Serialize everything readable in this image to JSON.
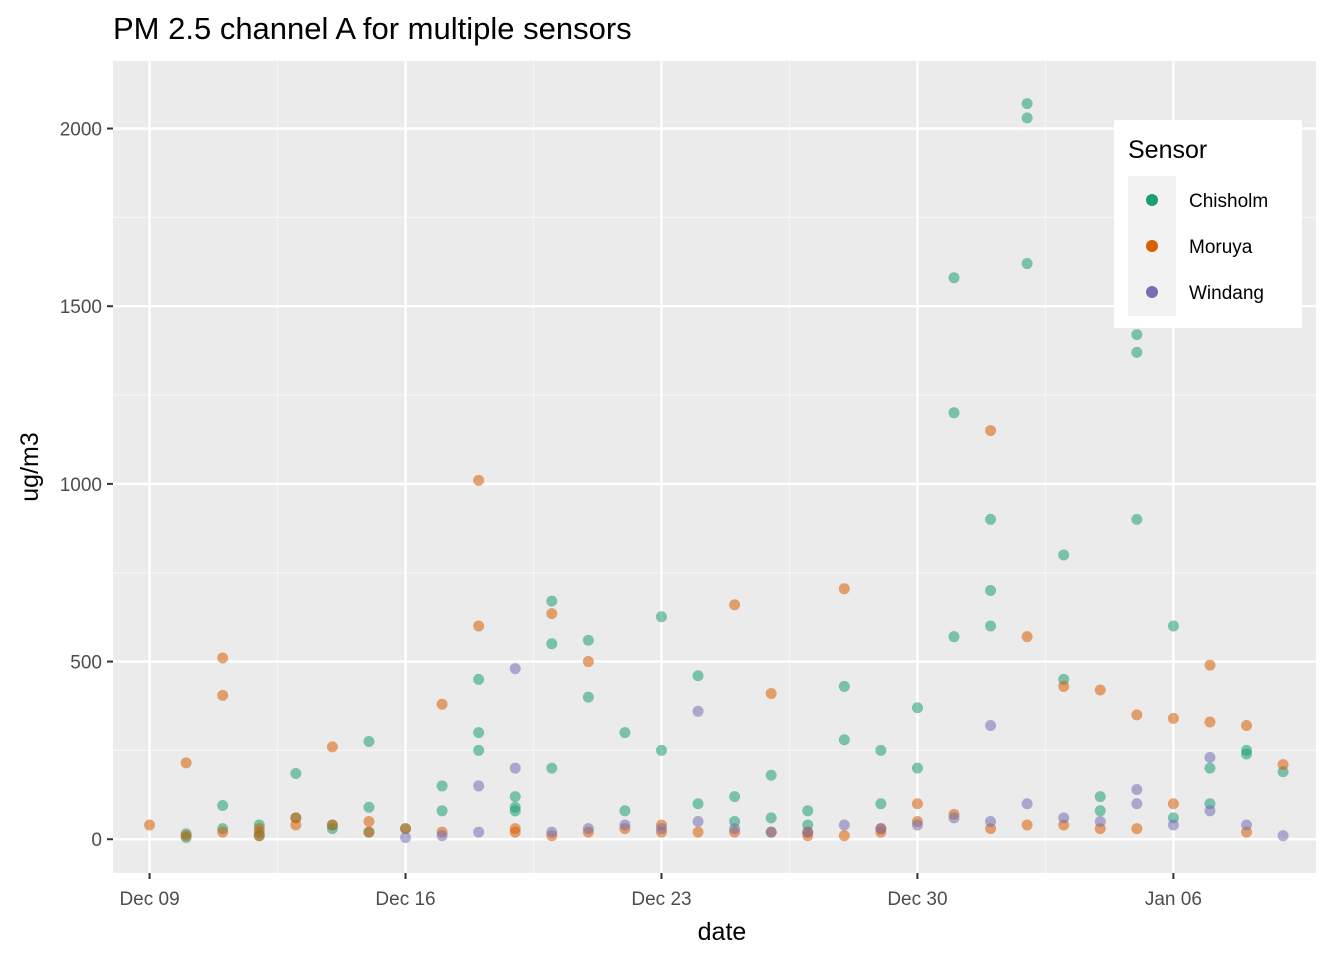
{
  "chart_data": {
    "type": "scatter",
    "title": "PM 2.5 channel A for multiple sensors",
    "xlabel": "date",
    "ylabel": "ug/m3",
    "x_ticks": [
      "Dec 09",
      "Dec 16",
      "Dec 23",
      "Dec 30",
      "Jan 06"
    ],
    "y_ticks": [
      "0",
      "500",
      "1000",
      "1500",
      "2000"
    ],
    "x_range_days": [
      -1.0,
      31.9
    ],
    "ylim": [
      -95,
      2190
    ],
    "grid": true,
    "legend": {
      "title": "Sensor",
      "position": "top-right",
      "entries": [
        "Chisholm",
        "Moruya",
        "Windang"
      ]
    },
    "colors": {
      "Chisholm": "#1b9e77",
      "Moruya": "#d95f02",
      "Windang": "#7570b3"
    },
    "series": [
      {
        "name": "Chisholm",
        "x": [
          "Dec 10",
          "Dec 10",
          "Dec 11",
          "Dec 11",
          "Dec 12",
          "Dec 12",
          "Dec 12",
          "Dec 13",
          "Dec 13",
          "Dec 14",
          "Dec 14",
          "Dec 15",
          "Dec 15",
          "Dec 15",
          "Dec 16",
          "Dec 17",
          "Dec 17",
          "Dec 18",
          "Dec 18",
          "Dec 18",
          "Dec 19",
          "Dec 19",
          "Dec 19",
          "Dec 20",
          "Dec 20",
          "Dec 20",
          "Dec 21",
          "Dec 21",
          "Dec 22",
          "Dec 22",
          "Dec 23",
          "Dec 23",
          "Dec 24",
          "Dec 24",
          "Dec 25",
          "Dec 25",
          "Dec 26",
          "Dec 26",
          "Dec 27",
          "Dec 27",
          "Dec 28",
          "Dec 28",
          "Dec 29",
          "Dec 29",
          "Dec 30",
          "Dec 30",
          "Dec 31",
          "Dec 31",
          "Dec 31",
          "Jan 01",
          "Jan 01",
          "Jan 01",
          "Jan 02",
          "Jan 02",
          "Jan 02",
          "Jan 03",
          "Jan 03",
          "Jan 04",
          "Jan 04",
          "Jan 05",
          "Jan 05",
          "Jan 05",
          "Jan 06",
          "Jan 06",
          "Jan 07",
          "Jan 07",
          "Jan 08",
          "Jan 08",
          "Jan 09"
        ],
        "y": [
          5,
          15,
          30,
          95,
          20,
          10,
          40,
          185,
          60,
          40,
          30,
          275,
          90,
          20,
          30,
          80,
          150,
          450,
          250,
          300,
          90,
          120,
          80,
          670,
          550,
          200,
          400,
          560,
          300,
          80,
          626,
          250,
          460,
          100,
          50,
          120,
          180,
          60,
          40,
          80,
          430,
          280,
          250,
          100,
          370,
          200,
          570,
          1580,
          1200,
          900,
          700,
          600,
          2070,
          2030,
          1620,
          800,
          450,
          120,
          80,
          1420,
          900,
          1370,
          600,
          60,
          100,
          200,
          250,
          240,
          190
        ]
      },
      {
        "name": "Moruya",
        "x": [
          "Dec 09",
          "Dec 10",
          "Dec 10",
          "Dec 11",
          "Dec 11",
          "Dec 11",
          "Dec 12",
          "Dec 12",
          "Dec 13",
          "Dec 13",
          "Dec 14",
          "Dec 14",
          "Dec 15",
          "Dec 15",
          "Dec 16",
          "Dec 17",
          "Dec 17",
          "Dec 18",
          "Dec 18",
          "Dec 19",
          "Dec 19",
          "Dec 20",
          "Dec 20",
          "Dec 21",
          "Dec 21",
          "Dec 22",
          "Dec 23",
          "Dec 23",
          "Dec 24",
          "Dec 25",
          "Dec 25",
          "Dec 26",
          "Dec 26",
          "Dec 27",
          "Dec 27",
          "Dec 28",
          "Dec 28",
          "Dec 29",
          "Dec 29",
          "Dec 30",
          "Dec 30",
          "Dec 31",
          "Jan 01",
          "Jan 01",
          "Jan 02",
          "Jan 02",
          "Jan 03",
          "Jan 03",
          "Jan 04",
          "Jan 04",
          "Jan 05",
          "Jan 05",
          "Jan 06",
          "Jan 06",
          "Jan 07",
          "Jan 07",
          "Jan 08",
          "Jan 08",
          "Jan 09"
        ],
        "y": [
          40,
          215,
          10,
          510,
          405,
          20,
          10,
          30,
          40,
          60,
          260,
          40,
          20,
          50,
          30,
          380,
          20,
          1010,
          600,
          30,
          20,
          10,
          635,
          500,
          20,
          30,
          20,
          40,
          20,
          660,
          20,
          410,
          20,
          10,
          20,
          705,
          10,
          20,
          30,
          100,
          50,
          70,
          1150,
          30,
          570,
          40,
          430,
          40,
          420,
          30,
          30,
          350,
          340,
          100,
          490,
          330,
          320,
          20,
          210
        ]
      },
      {
        "name": "Windang",
        "x": [
          "Dec 16",
          "Dec 17",
          "Dec 18",
          "Dec 18",
          "Dec 19",
          "Dec 19",
          "Dec 20",
          "Dec 21",
          "Dec 22",
          "Dec 23",
          "Dec 24",
          "Dec 24",
          "Dec 25",
          "Dec 26",
          "Dec 27",
          "Dec 28",
          "Dec 29",
          "Dec 30",
          "Dec 31",
          "Jan 01",
          "Jan 01",
          "Jan 02",
          "Jan 03",
          "Jan 04",
          "Jan 05",
          "Jan 05",
          "Jan 06",
          "Jan 07",
          "Jan 07",
          "Jan 08",
          "Jan 09"
        ],
        "y": [
          5,
          10,
          20,
          150,
          480,
          200,
          20,
          30,
          40,
          30,
          360,
          50,
          30,
          20,
          20,
          40,
          30,
          40,
          60,
          320,
          50,
          100,
          60,
          50,
          100,
          140,
          40,
          80,
          230,
          40,
          10
        ]
      }
    ]
  }
}
